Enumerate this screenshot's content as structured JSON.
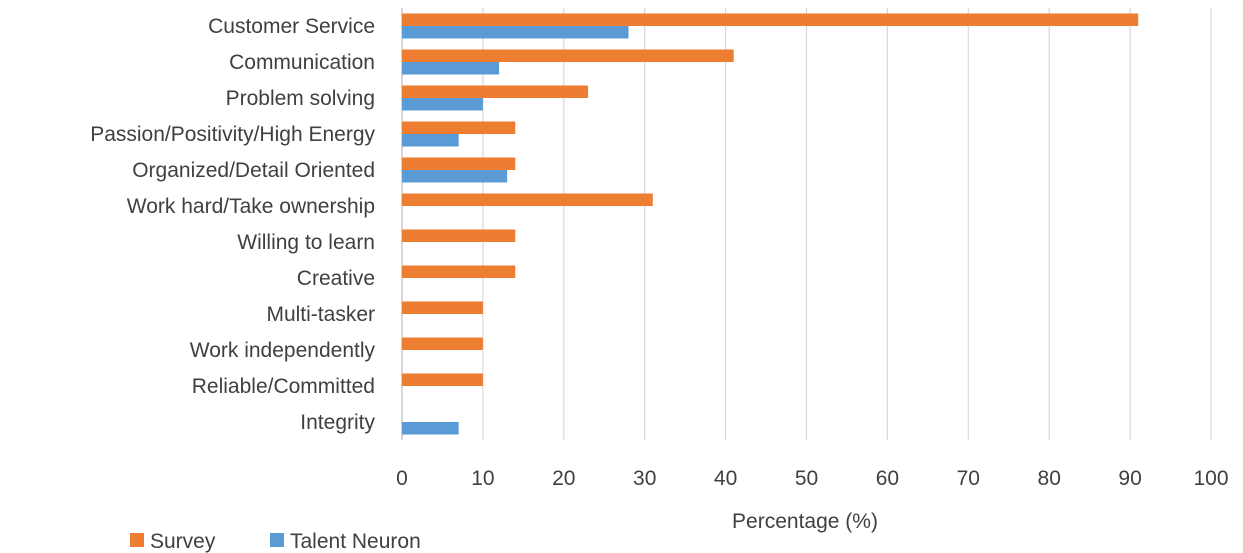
{
  "chart_data": {
    "type": "bar",
    "orientation": "horizontal",
    "categories": [
      "Customer Service",
      "Communication",
      "Problem solving",
      "Passion/Positivity/High Energy",
      "Organized/Detail Oriented",
      "Work hard/Take ownership",
      "Willing to learn",
      "Creative",
      "Multi-tasker",
      "Work independently",
      "Reliable/Committed",
      "Integrity"
    ],
    "series": [
      {
        "name": "Survey",
        "color": "#ED7D31",
        "values": [
          91,
          41,
          23,
          14,
          14,
          31,
          14,
          14,
          10,
          10,
          10,
          0
        ]
      },
      {
        "name": "Talent Neuron",
        "color": "#5B9BD5",
        "values": [
          28,
          12,
          10,
          7,
          13,
          0,
          0,
          0,
          0,
          0,
          0,
          7
        ]
      }
    ],
    "xlabel": "Percentage (%)",
    "ylabel": "",
    "title": "",
    "xlim": [
      0,
      100
    ],
    "xticks": [
      0,
      10,
      20,
      30,
      40,
      50,
      60,
      70,
      80,
      90,
      100
    ],
    "grid": true,
    "legend": "bottom-left"
  }
}
